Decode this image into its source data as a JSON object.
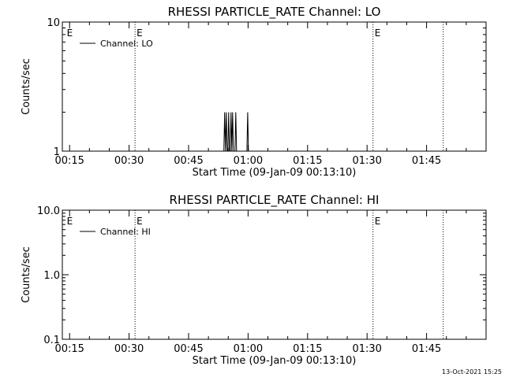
{
  "footer_timestamp": "13-Oct-2021 15:25",
  "chart_data": [
    {
      "type": "line",
      "title": "RHESSI PARTICLE_RATE Channel: LO",
      "xlabel": "Start Time (09-Jan-09 00:13:10)",
      "ylabel": "Counts/sec",
      "y_scale": "log",
      "ylim": [
        1,
        10
      ],
      "y_ticks": [
        {
          "value": 1,
          "label": "1"
        },
        {
          "value": 10,
          "label": "10"
        }
      ],
      "xlim_minutes": [
        13.17,
        120
      ],
      "x_ticks": [
        {
          "value": 15,
          "label": "00:15"
        },
        {
          "value": 30,
          "label": "00:30"
        },
        {
          "value": 45,
          "label": "00:45"
        },
        {
          "value": 60,
          "label": "01:00"
        },
        {
          "value": 75,
          "label": "01:15"
        },
        {
          "value": 90,
          "label": "01:30"
        },
        {
          "value": 105,
          "label": "01:45"
        }
      ],
      "legend": {
        "entries": [
          "Channel: LO"
        ],
        "placement": "top-left"
      },
      "event_markers": [
        {
          "x": 31.5,
          "label": "E"
        },
        {
          "x": 13.9,
          "label": "E"
        },
        {
          "x": 91.5,
          "label": "E"
        },
        {
          "x": 109.2,
          "label": ""
        }
      ],
      "series": [
        {
          "name": "Channel: LO",
          "x": [
            53.9,
            54.1,
            54.3,
            54.5,
            54.7,
            54.9,
            55.1,
            55.3,
            55.5,
            55.7,
            55.9,
            56.1,
            56.3,
            56.5,
            56.7,
            56.9,
            57.1,
            57.3,
            57.5,
            57.7,
            57.9,
            58.1,
            58.3,
            58.5,
            58.7,
            58.9,
            59.1,
            59.3,
            59.5,
            59.7,
            59.9,
            60.1,
            60.3
          ],
          "y": [
            1,
            2,
            1,
            2,
            1,
            1,
            2,
            1,
            1,
            2,
            1,
            2,
            1,
            1,
            1,
            2,
            1,
            1,
            1,
            1,
            1,
            1,
            1,
            1,
            1,
            1,
            1,
            1,
            1,
            1,
            2,
            1,
            1
          ]
        }
      ]
    },
    {
      "type": "line",
      "title": "RHESSI PARTICLE_RATE Channel: HI",
      "xlabel": "Start Time (09-Jan-09 00:13:10)",
      "ylabel": "Counts/sec",
      "y_scale": "log",
      "ylim": [
        0.1,
        10
      ],
      "y_ticks": [
        {
          "value": 0.1,
          "label": "0.1"
        },
        {
          "value": 1,
          "label": "1.0"
        },
        {
          "value": 10,
          "label": "10.0"
        }
      ],
      "xlim_minutes": [
        13.17,
        120
      ],
      "x_ticks": [
        {
          "value": 15,
          "label": "00:15"
        },
        {
          "value": 30,
          "label": "00:30"
        },
        {
          "value": 45,
          "label": "00:45"
        },
        {
          "value": 60,
          "label": "01:00"
        },
        {
          "value": 75,
          "label": "01:15"
        },
        {
          "value": 90,
          "label": "01:30"
        },
        {
          "value": 105,
          "label": "01:45"
        }
      ],
      "legend": {
        "entries": [
          "Channel: HI"
        ],
        "placement": "top-left"
      },
      "event_markers": [
        {
          "x": 31.5,
          "label": "E"
        },
        {
          "x": 13.9,
          "label": "E"
        },
        {
          "x": 91.5,
          "label": "E"
        },
        {
          "x": 109.2,
          "label": ""
        }
      ],
      "series": [
        {
          "name": "Channel: HI",
          "x": [],
          "y": []
        }
      ]
    }
  ]
}
